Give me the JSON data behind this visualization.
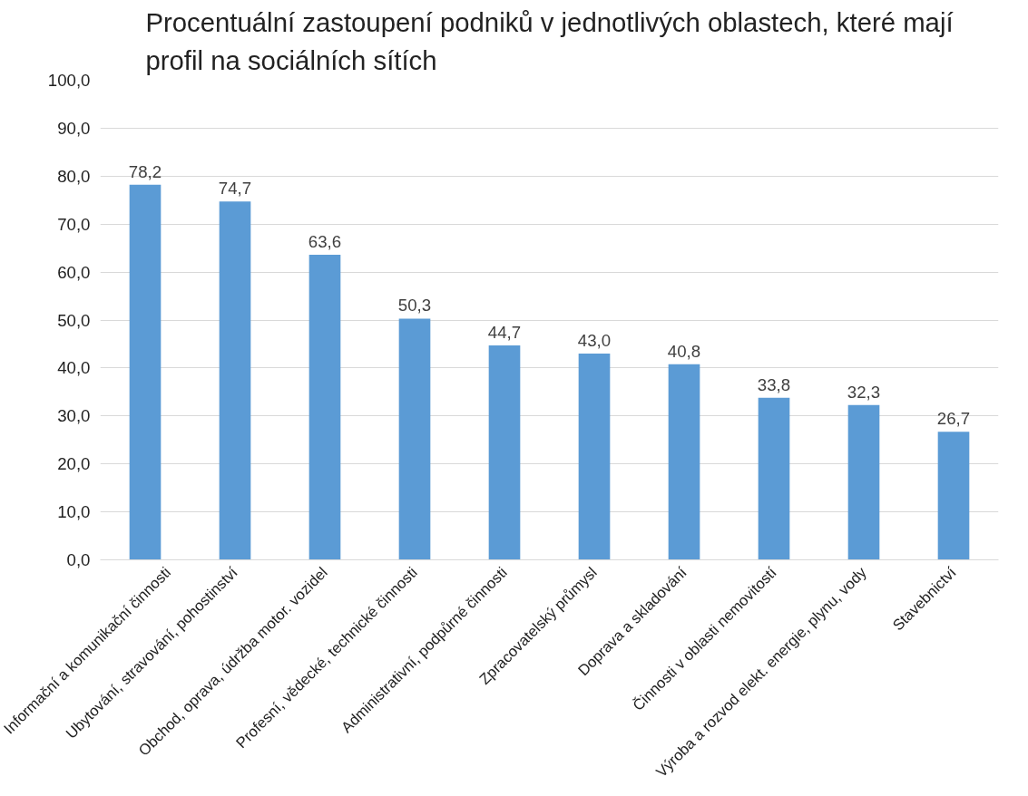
{
  "chart_data": {
    "type": "bar",
    "title": "Procentuální zastoupení podniků v jednotlivých oblastech, které mají profil na sociálních sítích",
    "categories": [
      "Informační a komunikační činnosti",
      "Ubytování, stravování, pohostinství",
      "Obchod, oprava, údržba motor. vozidel",
      "Profesní, vědecké, technické činnosti",
      "Administrativní, podpůrné činnosti",
      "Zpracovatelský průmysl",
      "Doprava a skladování",
      "Činnosti v oblasti nemovitostí",
      "Výroba a rozvod elekt. energie, plynu, vody",
      "Stavebnictví"
    ],
    "values": [
      78.2,
      74.7,
      63.6,
      50.3,
      44.7,
      43.0,
      40.8,
      33.8,
      32.3,
      26.7
    ],
    "value_labels": [
      "78,2",
      "74,7",
      "63,6",
      "50,3",
      "44,7",
      "43,0",
      "40,8",
      "33,8",
      "32,3",
      "26,7"
    ],
    "color": "#5b9bd5",
    "ylim": [
      0,
      100
    ],
    "yticks": [
      {
        "value": 0,
        "label": "0,0"
      },
      {
        "value": 10,
        "label": "10,0"
      },
      {
        "value": 20,
        "label": "20,0"
      },
      {
        "value": 30,
        "label": "30,0"
      },
      {
        "value": 40,
        "label": "40,0"
      },
      {
        "value": 50,
        "label": "50,0"
      },
      {
        "value": 60,
        "label": "60,0"
      },
      {
        "value": 70,
        "label": "70,0"
      },
      {
        "value": 80,
        "label": "80,0"
      },
      {
        "value": 90,
        "label": "90,0"
      },
      {
        "value": 100,
        "label": "100,0"
      }
    ],
    "grid": "y"
  }
}
